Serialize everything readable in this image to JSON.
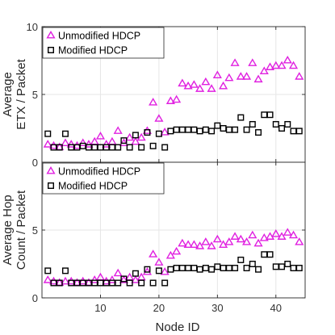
{
  "chart_data": [
    {
      "type": "scatter",
      "title": "",
      "ylabel": "Average ETX / Packet",
      "xlabel": "",
      "xlim": [
        0,
        45
      ],
      "ylim": [
        0,
        10
      ],
      "yticks": [
        0,
        5,
        10
      ],
      "xticks": [],
      "grid": true,
      "legend_position": "top-left",
      "x": [
        1,
        2,
        3,
        4,
        5,
        6,
        7,
        8,
        9,
        10,
        11,
        12,
        13,
        14,
        15,
        16,
        17,
        18,
        19,
        20,
        21,
        22,
        23,
        24,
        25,
        26,
        27,
        28,
        29,
        30,
        31,
        32,
        33,
        34,
        35,
        36,
        37,
        38,
        39,
        40,
        41,
        42,
        43,
        44
      ],
      "series": [
        {
          "name": "Unmodified HDCP",
          "marker": "triangle",
          "color": "#e020e0",
          "values": [
            1.3,
            1.2,
            1.1,
            1.4,
            1.3,
            1.2,
            1.4,
            1.3,
            1.5,
            1.9,
            1.3,
            1.5,
            2.3,
            1.4,
            1.8,
            1.5,
            1.8,
            2.3,
            4.4,
            3.2,
            2.2,
            4.5,
            4.6,
            5.8,
            5.6,
            5.7,
            5.4,
            5.9,
            5.4,
            6.4,
            5.6,
            6.2,
            7.3,
            6.3,
            6.3,
            7.3,
            6.1,
            6.7,
            7.0,
            7.1,
            7.1,
            7.5,
            7.1,
            6.3
          ]
        },
        {
          "name": "Modified HDCP",
          "marker": "square",
          "color": "#000000",
          "values": [
            2.1,
            1.1,
            1.1,
            2.1,
            1.1,
            1.1,
            1.2,
            1.1,
            1.1,
            1.1,
            1.1,
            1.1,
            1.1,
            1.6,
            1.1,
            2.0,
            1.1,
            2.2,
            1.2,
            2.1,
            1.1,
            2.3,
            2.4,
            2.4,
            2.4,
            2.4,
            2.3,
            2.4,
            2.3,
            2.7,
            2.5,
            2.4,
            2.4,
            3.3,
            2.4,
            2.8,
            2.2,
            3.5,
            3.5,
            2.8,
            2.5,
            2.8,
            2.3,
            2.3
          ]
        }
      ]
    },
    {
      "type": "scatter",
      "title": "",
      "ylabel": "Average Hop Count / Packet",
      "xlabel": "Node ID",
      "xlim": [
        0,
        45
      ],
      "ylim": [
        0,
        10
      ],
      "yticks": [
        0,
        5
      ],
      "xticks": [
        10,
        20,
        30,
        40
      ],
      "grid": true,
      "legend_position": "top-left",
      "x": [
        1,
        2,
        3,
        4,
        5,
        6,
        7,
        8,
        9,
        10,
        11,
        12,
        13,
        14,
        15,
        16,
        17,
        18,
        19,
        20,
        21,
        22,
        23,
        24,
        25,
        26,
        27,
        28,
        29,
        30,
        31,
        32,
        33,
        34,
        35,
        36,
        37,
        38,
        39,
        40,
        41,
        42,
        43,
        44
      ],
      "series": [
        {
          "name": "Unmodified HDCP",
          "marker": "triangle",
          "color": "#e020e0",
          "values": [
            1.3,
            1.2,
            1.1,
            1.2,
            1.2,
            1.1,
            1.2,
            1.1,
            1.3,
            1.5,
            1.2,
            1.3,
            1.8,
            1.3,
            1.5,
            1.3,
            1.5,
            1.9,
            3.2,
            2.6,
            1.9,
            3.1,
            3.4,
            4.0,
            3.9,
            3.9,
            3.8,
            4.1,
            3.8,
            4.3,
            3.9,
            4.1,
            4.5,
            4.3,
            4.1,
            4.6,
            4.0,
            4.4,
            4.5,
            4.7,
            4.5,
            4.8,
            4.6,
            4.1
          ]
        },
        {
          "name": "Modified HDCP",
          "marker": "square",
          "color": "#000000",
          "values": [
            2.0,
            1.1,
            1.1,
            2.0,
            1.1,
            1.1,
            1.1,
            1.1,
            1.1,
            1.1,
            1.1,
            1.1,
            1.1,
            1.4,
            1.1,
            1.8,
            1.1,
            2.1,
            1.1,
            2.0,
            1.1,
            2.1,
            2.2,
            2.2,
            2.2,
            2.2,
            2.1,
            2.2,
            2.1,
            2.3,
            2.2,
            2.2,
            2.2,
            2.8,
            2.2,
            2.5,
            2.1,
            3.2,
            3.2,
            2.3,
            2.3,
            2.5,
            2.2,
            2.2
          ]
        }
      ]
    }
  ]
}
